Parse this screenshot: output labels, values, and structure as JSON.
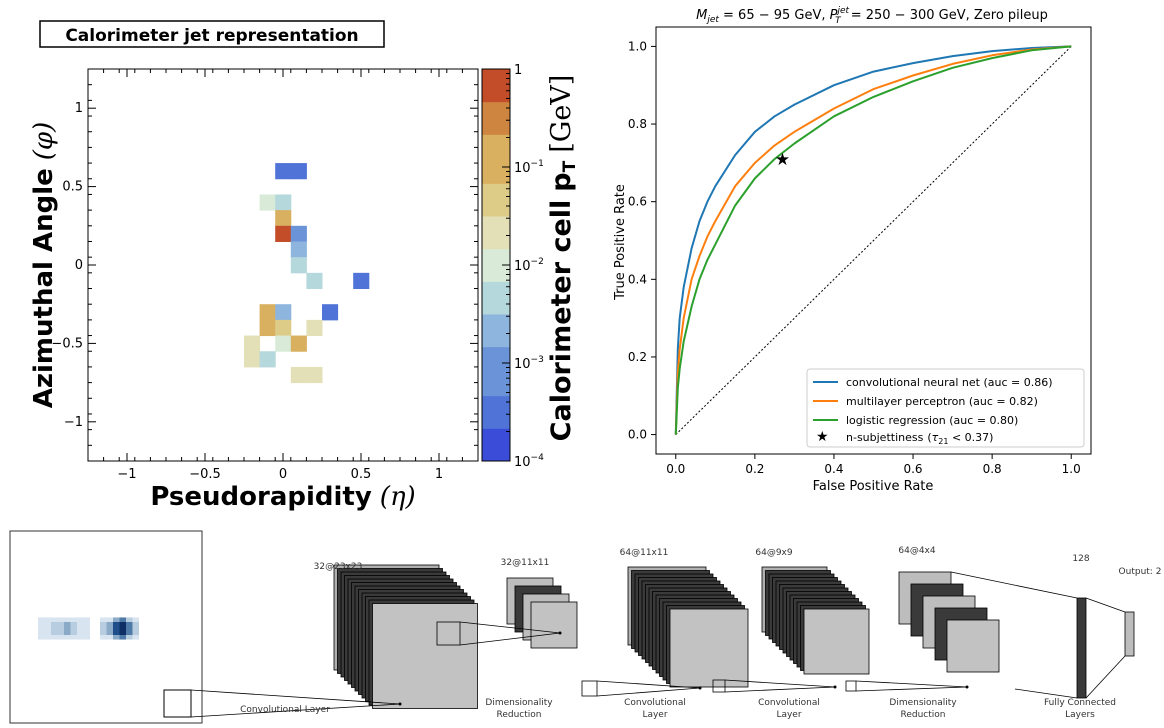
{
  "chart_data": [
    {
      "type": "heatmap",
      "title": "Calorimeter jet representation",
      "xlabel": "Pseudorapidity",
      "xlabel_symbol": "(η)",
      "ylabel": "Azimuthal Angle",
      "ylabel_symbol": "(φ)",
      "xlim": [
        -1.25,
        1.25
      ],
      "ylim": [
        -1.25,
        1.25
      ],
      "x_ticks": [
        -1,
        -0.5,
        0,
        0.5,
        1
      ],
      "x_tick_labels": [
        "−1",
        "−0.5",
        "0",
        "0.5",
        "1"
      ],
      "y_ticks": [
        -1,
        -0.5,
        0,
        0.5,
        1
      ],
      "y_tick_labels": [
        "−1",
        "−0.5",
        "0",
        "0.5",
        "1"
      ],
      "cell_size": 0.1,
      "cells": [
        {
          "eta": 0.0,
          "phi": 0.6,
          "pt": 0.0004
        },
        {
          "eta": 0.1,
          "phi": 0.6,
          "pt": 0.0004
        },
        {
          "eta": -0.1,
          "phi": 0.4,
          "pt": 0.01
        },
        {
          "eta": 0.0,
          "phi": 0.4,
          "pt": 0.005
        },
        {
          "eta": 0.0,
          "phi": 0.3,
          "pt": 0.1
        },
        {
          "eta": 0.0,
          "phi": 0.2,
          "pt": 0.7
        },
        {
          "eta": 0.1,
          "phi": 0.2,
          "pt": 0.001
        },
        {
          "eta": 0.1,
          "phi": 0.1,
          "pt": 0.002
        },
        {
          "eta": 0.1,
          "phi": 0.0,
          "pt": 0.003
        },
        {
          "eta": 0.2,
          "phi": -0.1,
          "pt": 0.006
        },
        {
          "eta": 0.5,
          "phi": -0.1,
          "pt": 0.0004
        },
        {
          "eta": -0.1,
          "phi": -0.3,
          "pt": 0.15
        },
        {
          "eta": 0.0,
          "phi": -0.3,
          "pt": 0.002
        },
        {
          "eta": 0.3,
          "phi": -0.3,
          "pt": 0.0004
        },
        {
          "eta": -0.1,
          "phi": -0.4,
          "pt": 0.1
        },
        {
          "eta": 0.0,
          "phi": -0.4,
          "pt": 0.05
        },
        {
          "eta": 0.2,
          "phi": -0.4,
          "pt": 0.03
        },
        {
          "eta": -0.2,
          "phi": -0.5,
          "pt": 0.02
        },
        {
          "eta": 0.0,
          "phi": -0.5,
          "pt": 0.008
        },
        {
          "eta": 0.1,
          "phi": -0.5,
          "pt": 0.1
        },
        {
          "eta": -0.2,
          "phi": -0.6,
          "pt": 0.02
        },
        {
          "eta": -0.1,
          "phi": -0.6,
          "pt": 0.003
        },
        {
          "eta": 0.1,
          "phi": -0.7,
          "pt": 0.03
        },
        {
          "eta": 0.2,
          "phi": -0.7,
          "pt": 0.03
        }
      ],
      "colorbar": {
        "label": "Calorimeter cell",
        "label_symbol": "p",
        "label_subscript": "T",
        "label_unit": "[GeV]",
        "scale": "log",
        "range": [
          0.0001,
          1
        ],
        "ticks": [
          {
            "value": 1,
            "base": "1",
            "exp": ""
          },
          {
            "value": 0.1,
            "base": "10",
            "exp": "−1"
          },
          {
            "value": 0.01,
            "base": "10",
            "exp": "−2"
          },
          {
            "value": 0.001,
            "base": "10",
            "exp": "−3"
          },
          {
            "value": 0.0001,
            "base": "10",
            "exp": "−4"
          }
        ],
        "palette": [
          "#3b4cd9",
          "#4f73d6",
          "#6b93d8",
          "#8db5dd",
          "#b5d8dc",
          "#d9ebd8",
          "#e3e0b8",
          "#ddcb88",
          "#d8b060",
          "#cd8540",
          "#c24d28"
        ]
      }
    },
    {
      "type": "line",
      "title": {
        "m_sym": "M",
        "m_sub": "jet",
        "m_text": " = 65 − 95 GeV,  ",
        "p_sym": "P",
        "p_sup": "jet",
        "p_sub": "T",
        "p_text": " = 250 − 300 GeV,   Zero pileup"
      },
      "xlabel": "False Positive Rate",
      "ylabel": "True Positive Rate",
      "xlim": [
        -0.05,
        1.05
      ],
      "ylim": [
        -0.05,
        1.05
      ],
      "ticks": [
        0,
        0.2,
        0.4,
        0.6,
        0.8,
        1
      ],
      "tick_labels": [
        "0.0",
        "0.2",
        "0.4",
        "0.6",
        "0.8",
        "1.0"
      ],
      "diagonal": true,
      "legend_position": "lower-right",
      "series": [
        {
          "name": "convolutional neural net (auc = 0.86)",
          "color": "#1f77b4",
          "x": [
            0,
            0.005,
            0.01,
            0.02,
            0.04,
            0.06,
            0.08,
            0.1,
            0.15,
            0.2,
            0.25,
            0.3,
            0.4,
            0.5,
            0.6,
            0.7,
            0.8,
            0.9,
            1.0
          ],
          "y": [
            0,
            0.22,
            0.3,
            0.38,
            0.48,
            0.55,
            0.6,
            0.64,
            0.72,
            0.78,
            0.82,
            0.85,
            0.9,
            0.935,
            0.957,
            0.975,
            0.988,
            0.996,
            1.0
          ]
        },
        {
          "name": "multilayer perceptron (auc = 0.82)",
          "color": "#ff7f0e",
          "x": [
            0,
            0.005,
            0.01,
            0.02,
            0.04,
            0.06,
            0.08,
            0.1,
            0.15,
            0.2,
            0.25,
            0.3,
            0.4,
            0.5,
            0.6,
            0.7,
            0.8,
            0.9,
            1.0
          ],
          "y": [
            0,
            0.16,
            0.22,
            0.3,
            0.4,
            0.46,
            0.51,
            0.55,
            0.64,
            0.7,
            0.745,
            0.78,
            0.84,
            0.89,
            0.925,
            0.955,
            0.977,
            0.992,
            1.0
          ]
        },
        {
          "name": "logistic regression (auc = 0.80)",
          "color": "#2ca02c",
          "x": [
            0,
            0.005,
            0.01,
            0.02,
            0.04,
            0.06,
            0.08,
            0.1,
            0.15,
            0.2,
            0.25,
            0.3,
            0.4,
            0.5,
            0.6,
            0.7,
            0.8,
            0.9,
            1.0
          ],
          "y": [
            0,
            0.12,
            0.17,
            0.24,
            0.33,
            0.4,
            0.45,
            0.49,
            0.59,
            0.66,
            0.71,
            0.75,
            0.82,
            0.87,
            0.91,
            0.945,
            0.97,
            0.99,
            1.0
          ]
        }
      ],
      "markers": [
        {
          "name": "n-subjettiness",
          "name_tex": "(τ₂₁ < 0.37)",
          "tau_sym": "τ",
          "tau_sub": "21",
          "cut": " < 0.37)",
          "x": 0.27,
          "y": 0.71,
          "symbol": "★"
        }
      ]
    }
  ],
  "cnn_diagram": {
    "input_image_colors": [
      "#d8e4ef",
      "#b8cde0",
      "#8aaac8",
      "#4f7aa8",
      "#1f4f8a",
      "#0d2f66"
    ],
    "stages": [
      {
        "dims": "32@23x23",
        "caption": "Convolutional Layer"
      },
      {
        "dims": "32@11x11",
        "caption": "Dimensionality",
        "caption2": "Reduction"
      },
      {
        "dims": "64@11x11",
        "caption": "Convolutional",
        "caption2": "Layer"
      },
      {
        "dims": "64@9x9",
        "caption": "Convolutional",
        "caption2": "Layer"
      },
      {
        "dims": "64@4x4",
        "caption": "Dimensionality",
        "caption2": "Reduction"
      }
    ],
    "dense": {
      "units": "128",
      "caption": "Fully Connected",
      "caption2": "Layers"
    },
    "output": {
      "label": "Output: 2"
    }
  }
}
